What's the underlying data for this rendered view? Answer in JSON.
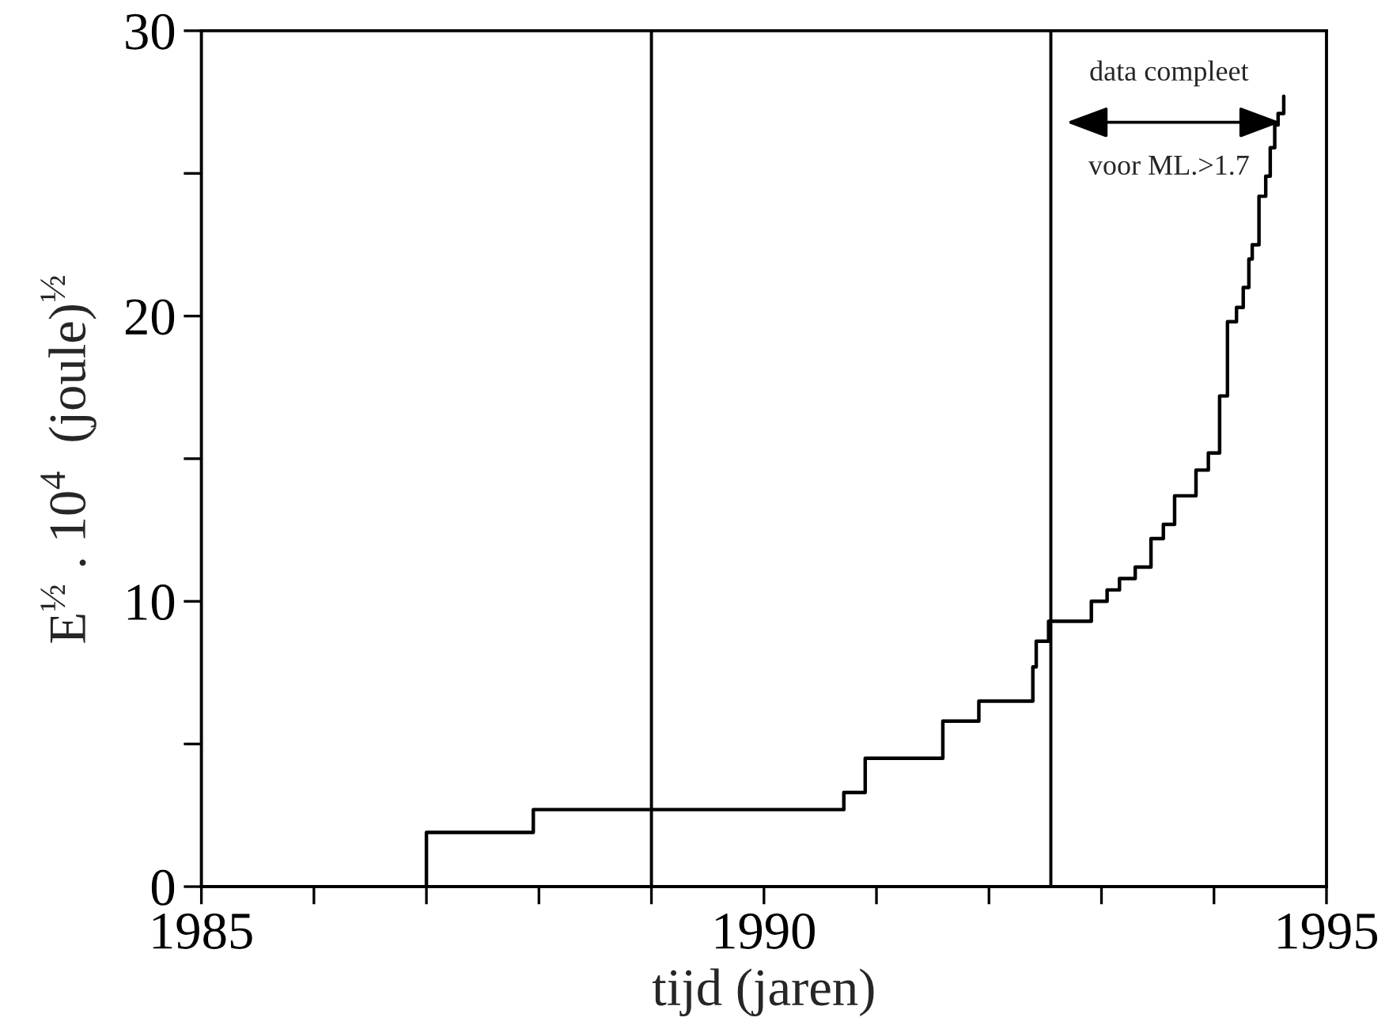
{
  "chart_data": {
    "type": "step",
    "xlabel": "tijd (jaren)",
    "ylabel": "E$^{½}$ . 10$^{4}$  (joule)$^{½}$",
    "series": [
      {
        "color": "#000000",
        "x": [
          1987.0,
          1987.0,
          1987.95,
          1990.71,
          1990.9,
          1991.59,
          1991.91,
          1992.39,
          1992.42,
          1992.53,
          1992.91,
          1993.05,
          1993.16,
          1993.3,
          1993.44,
          1993.55,
          1993.65,
          1993.84,
          1993.95,
          1994.05,
          1994.12,
          1994.2,
          1994.26,
          1994.31,
          1994.34,
          1994.4,
          1994.46,
          1994.5,
          1994.54,
          1994.57,
          1994.62
        ],
        "values": [
          0,
          1.9,
          2.7,
          3.3,
          4.5,
          5.8,
          6.5,
          7.7,
          8.6,
          9.3,
          10.0,
          10.4,
          10.8,
          11.2,
          12.2,
          12.7,
          13.7,
          14.6,
          15.2,
          17.2,
          19.8,
          20.3,
          21.0,
          22.0,
          22.5,
          24.2,
          24.9,
          25.9,
          26.7,
          27.1,
          27.7
        ]
      }
    ],
    "ref_lines": [
      {
        "axis": "x",
        "value": 1989.0,
        "color": "#000000"
      },
      {
        "axis": "x",
        "value": 1992.55,
        "color": "#000000"
      }
    ],
    "annotations": [
      "data compleet",
      "voor ML.>1.7"
    ],
    "xlim": [
      1985,
      1995
    ],
    "xticks": [
      1985,
      {
        "value": 1986,
        "label": null
      },
      {
        "value": 1987,
        "label": null
      },
      {
        "value": 1988,
        "label": null
      },
      {
        "value": 1989,
        "label": null
      },
      1990,
      {
        "value": 1991,
        "label": null
      },
      {
        "value": 1992,
        "label": null
      },
      {
        "value": 1993,
        "label": null
      },
      {
        "value": 1994,
        "label": null
      },
      1995
    ],
    "ylim": [
      0,
      30
    ],
    "yticks": [
      0,
      {
        "value": 5,
        "label": null
      },
      10,
      {
        "value": 15,
        "label": null
      },
      20,
      {
        "value": 25,
        "label": null
      },
      30
    ],
    "grid": false,
    "legend": false,
    "marker": "none",
    "line_style": "solid"
  }
}
